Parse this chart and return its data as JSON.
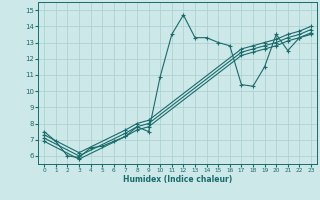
{
  "xlabel": "Humidex (Indice chaleur)",
  "bg_color": "#cce8e8",
  "line_color": "#1a6b6b",
  "grid_color": "#aacece",
  "xlim": [
    -0.5,
    23.5
  ],
  "ylim": [
    5.5,
    15.5
  ],
  "xticks": [
    0,
    1,
    2,
    3,
    4,
    5,
    6,
    7,
    8,
    9,
    10,
    11,
    12,
    13,
    14,
    15,
    16,
    17,
    18,
    19,
    20,
    21,
    22,
    23
  ],
  "yticks": [
    6,
    7,
    8,
    9,
    10,
    11,
    12,
    13,
    14,
    15
  ],
  "line1_x": [
    0,
    1,
    2,
    3,
    4,
    5,
    6,
    7,
    8,
    9,
    10,
    11,
    12,
    13,
    14,
    15,
    16,
    17,
    18,
    19,
    20,
    21,
    22,
    23
  ],
  "line1_y": [
    7.5,
    6.9,
    6.0,
    5.9,
    6.5,
    6.6,
    6.9,
    7.2,
    7.8,
    7.5,
    10.9,
    13.5,
    14.7,
    13.3,
    13.3,
    13.0,
    12.8,
    10.4,
    10.3,
    11.5,
    13.5,
    12.5,
    13.3,
    13.5
  ],
  "line2_x": [
    0,
    3,
    7,
    8,
    9,
    17,
    18,
    19,
    20,
    21,
    22,
    23
  ],
  "line2_y": [
    7.3,
    6.2,
    7.6,
    8.0,
    8.2,
    12.6,
    12.8,
    13.0,
    13.2,
    13.5,
    13.7,
    14.0
  ],
  "line3_x": [
    0,
    3,
    7,
    8,
    9,
    17,
    18,
    19,
    20,
    21,
    22,
    23
  ],
  "line3_y": [
    7.1,
    6.0,
    7.4,
    7.8,
    8.0,
    12.4,
    12.6,
    12.8,
    13.0,
    13.3,
    13.5,
    13.8
  ],
  "line4_x": [
    0,
    3,
    7,
    8,
    9,
    17,
    18,
    19,
    20,
    21,
    22,
    23
  ],
  "line4_y": [
    6.9,
    5.8,
    7.2,
    7.6,
    7.8,
    12.2,
    12.4,
    12.6,
    12.8,
    13.1,
    13.3,
    13.6
  ]
}
